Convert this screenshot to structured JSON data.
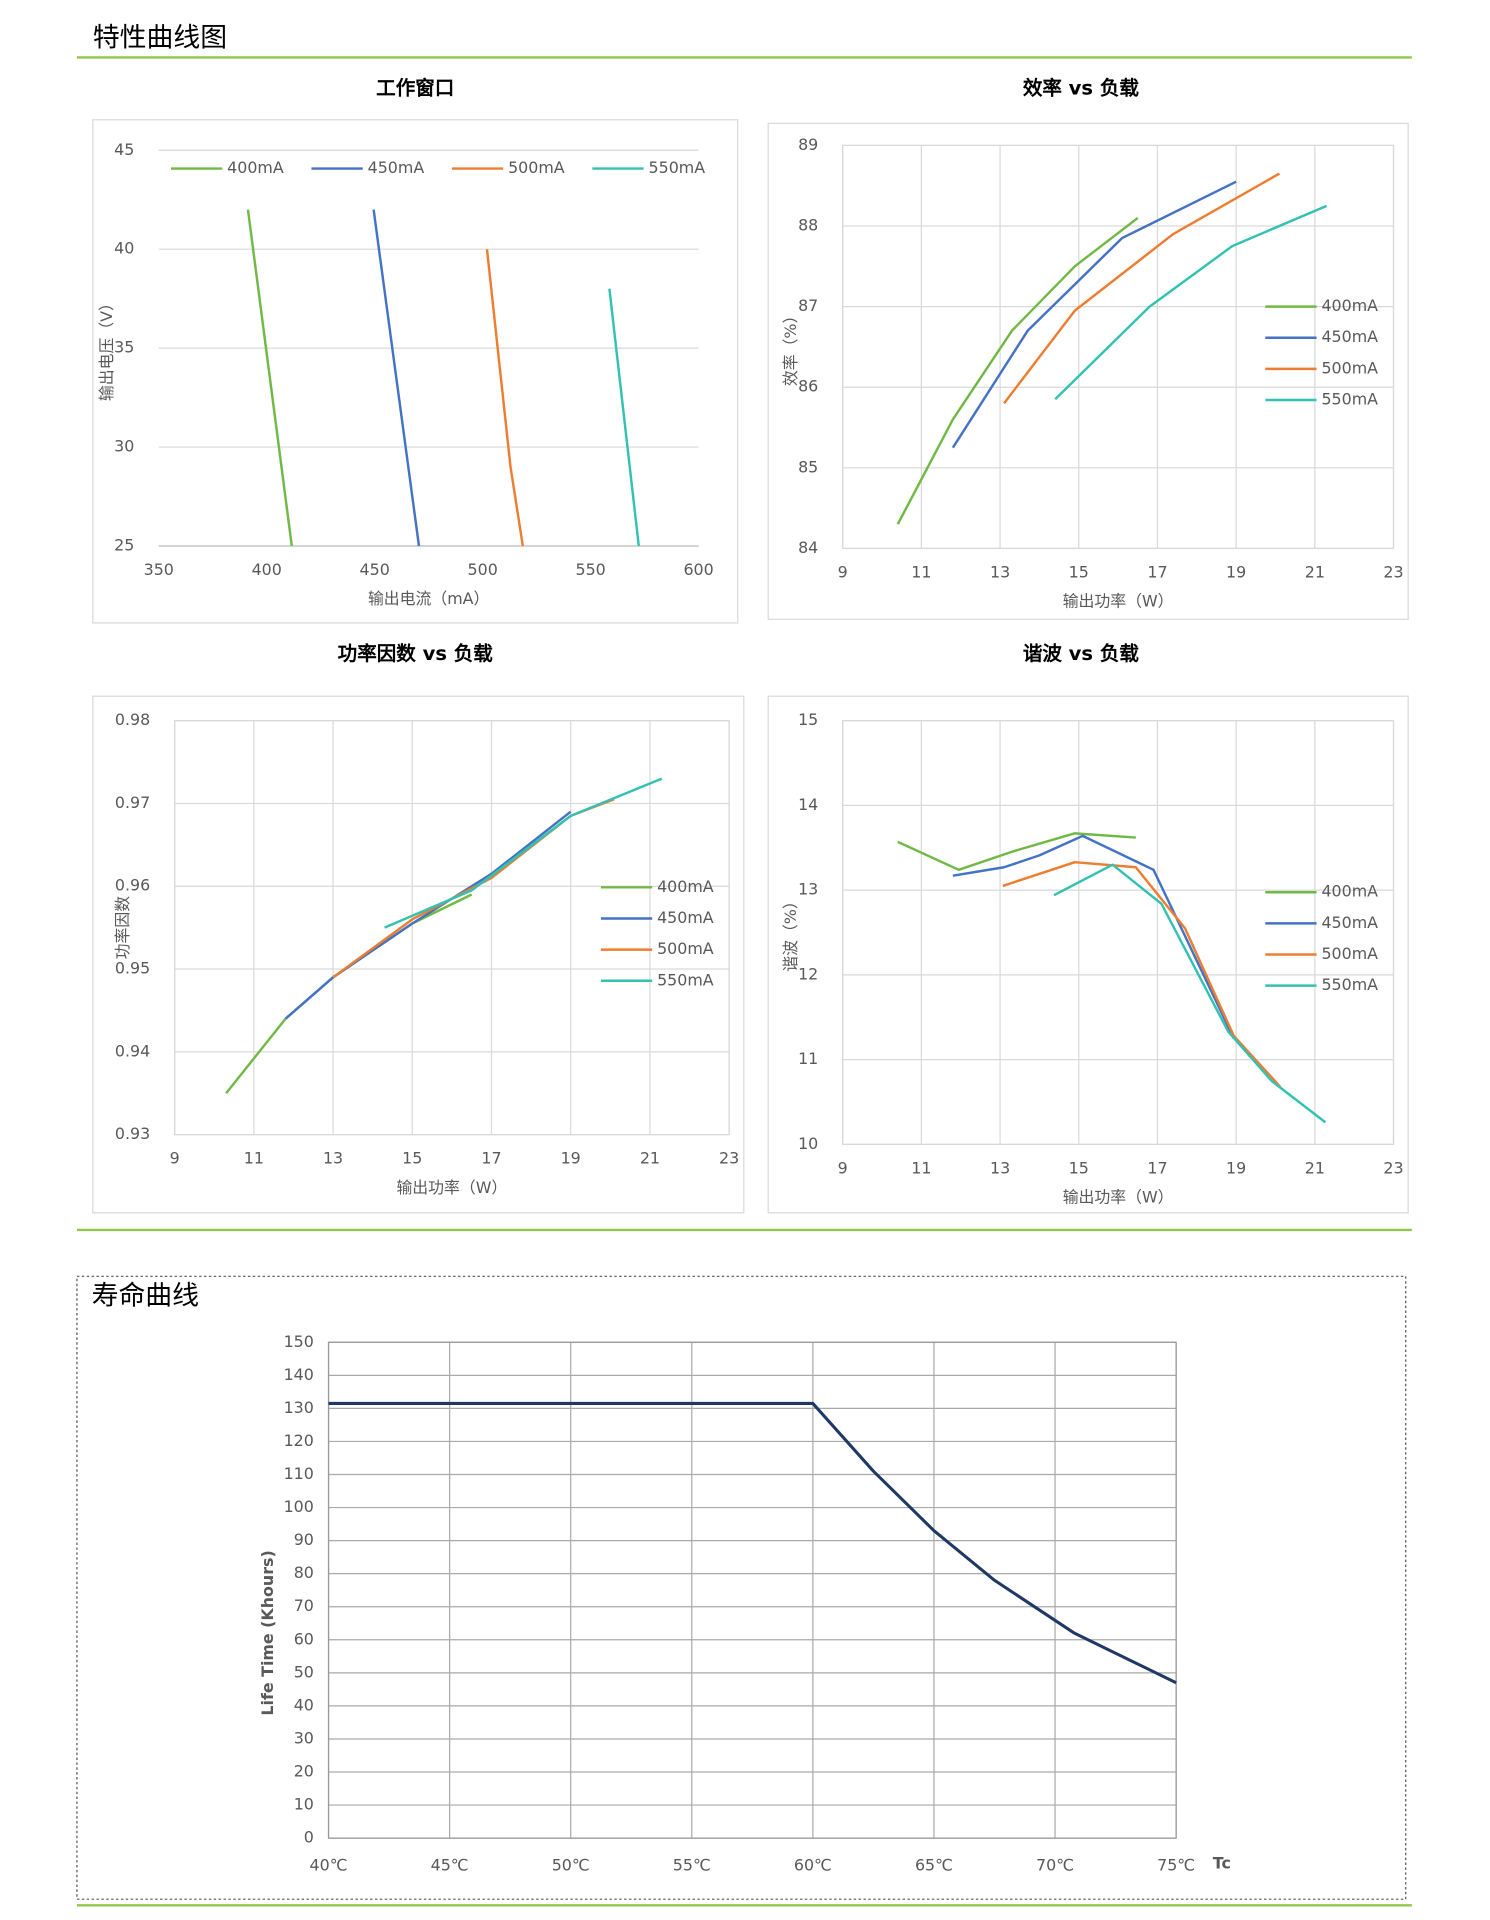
{
  "sections": [
    {
      "title": "特性曲线图"
    },
    {
      "title": "寿命曲线"
    }
  ],
  "chart_data": [
    {
      "type": "line",
      "title": "工作窗口",
      "xlabel": "输出电流（mA）",
      "ylabel": "输出电压（V）",
      "xlim": [
        350,
        600
      ],
      "ylim": [
        25,
        45
      ],
      "xticks": [
        350,
        400,
        450,
        500,
        550,
        600
      ],
      "yticks": [
        25,
        30,
        35,
        40,
        45
      ],
      "grid": "y",
      "legend": "top",
      "series": [
        {
          "name": "400mA",
          "color": "#70b944",
          "x": [
            391.3,
            411.6
          ],
          "values": [
            42,
            25
          ]
        },
        {
          "name": "450mA",
          "color": "#4472c4",
          "x": [
            449.5,
            470.5
          ],
          "values": [
            42,
            25
          ]
        },
        {
          "name": "500mA",
          "color": "#ed7d31",
          "x": [
            502,
            512.9,
            518.6
          ],
          "values": [
            40,
            29,
            25
          ]
        },
        {
          "name": "550mA",
          "color": "#33c1b1",
          "x": [
            558.7,
            572.3
          ],
          "values": [
            38,
            25
          ]
        }
      ]
    },
    {
      "type": "line",
      "title": "效率 vs 负载",
      "xlabel": "输出功率（W）",
      "ylabel": "效率（%）",
      "xlim": [
        9,
        23
      ],
      "ylim": [
        84,
        89
      ],
      "xticks": [
        9,
        11,
        13,
        15,
        17,
        19,
        21,
        23
      ],
      "yticks": [
        84,
        85,
        86,
        87,
        88,
        89
      ],
      "grid": "both",
      "legend": "right",
      "series": [
        {
          "name": "400mA",
          "color": "#70b944",
          "x": [
            10.4,
            11.8,
            13.3,
            14.9,
            16.5
          ],
          "values": [
            84.3,
            85.6,
            86.7,
            87.5,
            88.1
          ]
        },
        {
          "name": "450mA",
          "color": "#4472c4",
          "x": [
            11.8,
            13.7,
            16.1,
            19.0
          ],
          "values": [
            85.25,
            86.7,
            87.85,
            88.55
          ]
        },
        {
          "name": "500mA",
          "color": "#ed7d31",
          "x": [
            13.1,
            14.9,
            17.4,
            20.1
          ],
          "values": [
            85.8,
            86.95,
            87.9,
            88.65
          ]
        },
        {
          "name": "550mA",
          "color": "#33c1b1",
          "x": [
            14.4,
            16.8,
            18.9,
            21.3
          ],
          "values": [
            85.85,
            87.0,
            87.75,
            88.25
          ]
        }
      ]
    },
    {
      "type": "line",
      "title": "功率因数 vs 负载",
      "xlabel": "输出功率（W）",
      "ylabel": "功率因数",
      "xlim": [
        9,
        23
      ],
      "ylim": [
        0.93,
        0.98
      ],
      "xticks": [
        9,
        11,
        13,
        15,
        17,
        19,
        21,
        23
      ],
      "yticks": [
        0.93,
        0.94,
        0.95,
        0.96,
        0.97,
        0.98
      ],
      "grid": "both",
      "legend": "right",
      "series": [
        {
          "name": "400mA",
          "color": "#70b944",
          "x": [
            10.3,
            11.8,
            13,
            15,
            16.5
          ],
          "values": [
            0.935,
            0.944,
            0.949,
            0.9555,
            0.959
          ]
        },
        {
          "name": "450mA",
          "color": "#4472c4",
          "x": [
            11.8,
            13,
            15,
            17,
            19
          ],
          "values": [
            0.944,
            0.949,
            0.9555,
            0.9615,
            0.969
          ]
        },
        {
          "name": "500mA",
          "color": "#ed7d31",
          "x": [
            13,
            15,
            17,
            19,
            20.1
          ],
          "values": [
            0.949,
            0.956,
            0.961,
            0.9685,
            0.9705
          ]
        },
        {
          "name": "550mA",
          "color": "#33c1b1",
          "x": [
            14.3,
            16.5,
            19,
            21.3
          ],
          "values": [
            0.955,
            0.9595,
            0.9685,
            0.973
          ]
        }
      ]
    },
    {
      "type": "line",
      "title": "谐波 vs 负载",
      "xlabel": "输出功率（W）",
      "ylabel": "谐波（%）",
      "xlim": [
        9,
        23
      ],
      "ylim": [
        10,
        15
      ],
      "xticks": [
        9,
        11,
        13,
        15,
        17,
        19,
        21,
        23
      ],
      "yticks": [
        10,
        11,
        12,
        13,
        14,
        15
      ],
      "grid": "both",
      "legend": "right",
      "series": [
        {
          "name": "400mA",
          "color": "#70b944",
          "x": [
            10.4,
            11.95,
            13.35,
            14.9,
            16.45
          ],
          "values": [
            13.57,
            13.24,
            13.46,
            13.67,
            13.62
          ]
        },
        {
          "name": "450mA",
          "color": "#4472c4",
          "x": [
            11.8,
            13.1,
            14.0,
            15.1,
            16.9,
            18.94
          ],
          "values": [
            13.17,
            13.27,
            13.41,
            13.64,
            13.24,
            11.25
          ]
        },
        {
          "name": "500mA",
          "color": "#ed7d31",
          "x": [
            13.07,
            14.9,
            16.45,
            17.7,
            18.94,
            20.12
          ],
          "values": [
            13.05,
            13.33,
            13.27,
            12.55,
            11.28,
            10.68
          ]
        },
        {
          "name": "550mA",
          "color": "#33c1b1",
          "x": [
            14.37,
            15.86,
            17.1,
            18.8,
            19.9,
            21.27
          ],
          "values": [
            12.94,
            13.3,
            12.84,
            11.33,
            10.75,
            10.26
          ]
        }
      ]
    },
    {
      "type": "line",
      "xlabel": "Tc",
      "ylabel": "Life Time (Khours)",
      "xlim": [
        40,
        75
      ],
      "ylim": [
        0,
        150
      ],
      "xticks": [
        {
          "value": 40,
          "label": "40℃"
        },
        {
          "value": 45,
          "label": "45℃"
        },
        {
          "value": 50,
          "label": "50℃"
        },
        {
          "value": 55,
          "label": "55℃"
        },
        {
          "value": 60,
          "label": "60℃"
        },
        {
          "value": 65,
          "label": "65℃"
        },
        {
          "value": 70,
          "label": "70℃"
        },
        {
          "value": 75,
          "label": "75℃"
        }
      ],
      "yticks": [
        0,
        10,
        20,
        30,
        40,
        50,
        60,
        70,
        80,
        90,
        100,
        110,
        120,
        130,
        140,
        150
      ],
      "grid": "both",
      "series": [
        {
          "color": "#1f3864",
          "x": [
            40,
            60,
            62.5,
            65,
            67.5,
            70.8,
            75
          ],
          "values": [
            131.5,
            131.5,
            111,
            93,
            78,
            62,
            47
          ]
        }
      ]
    }
  ]
}
